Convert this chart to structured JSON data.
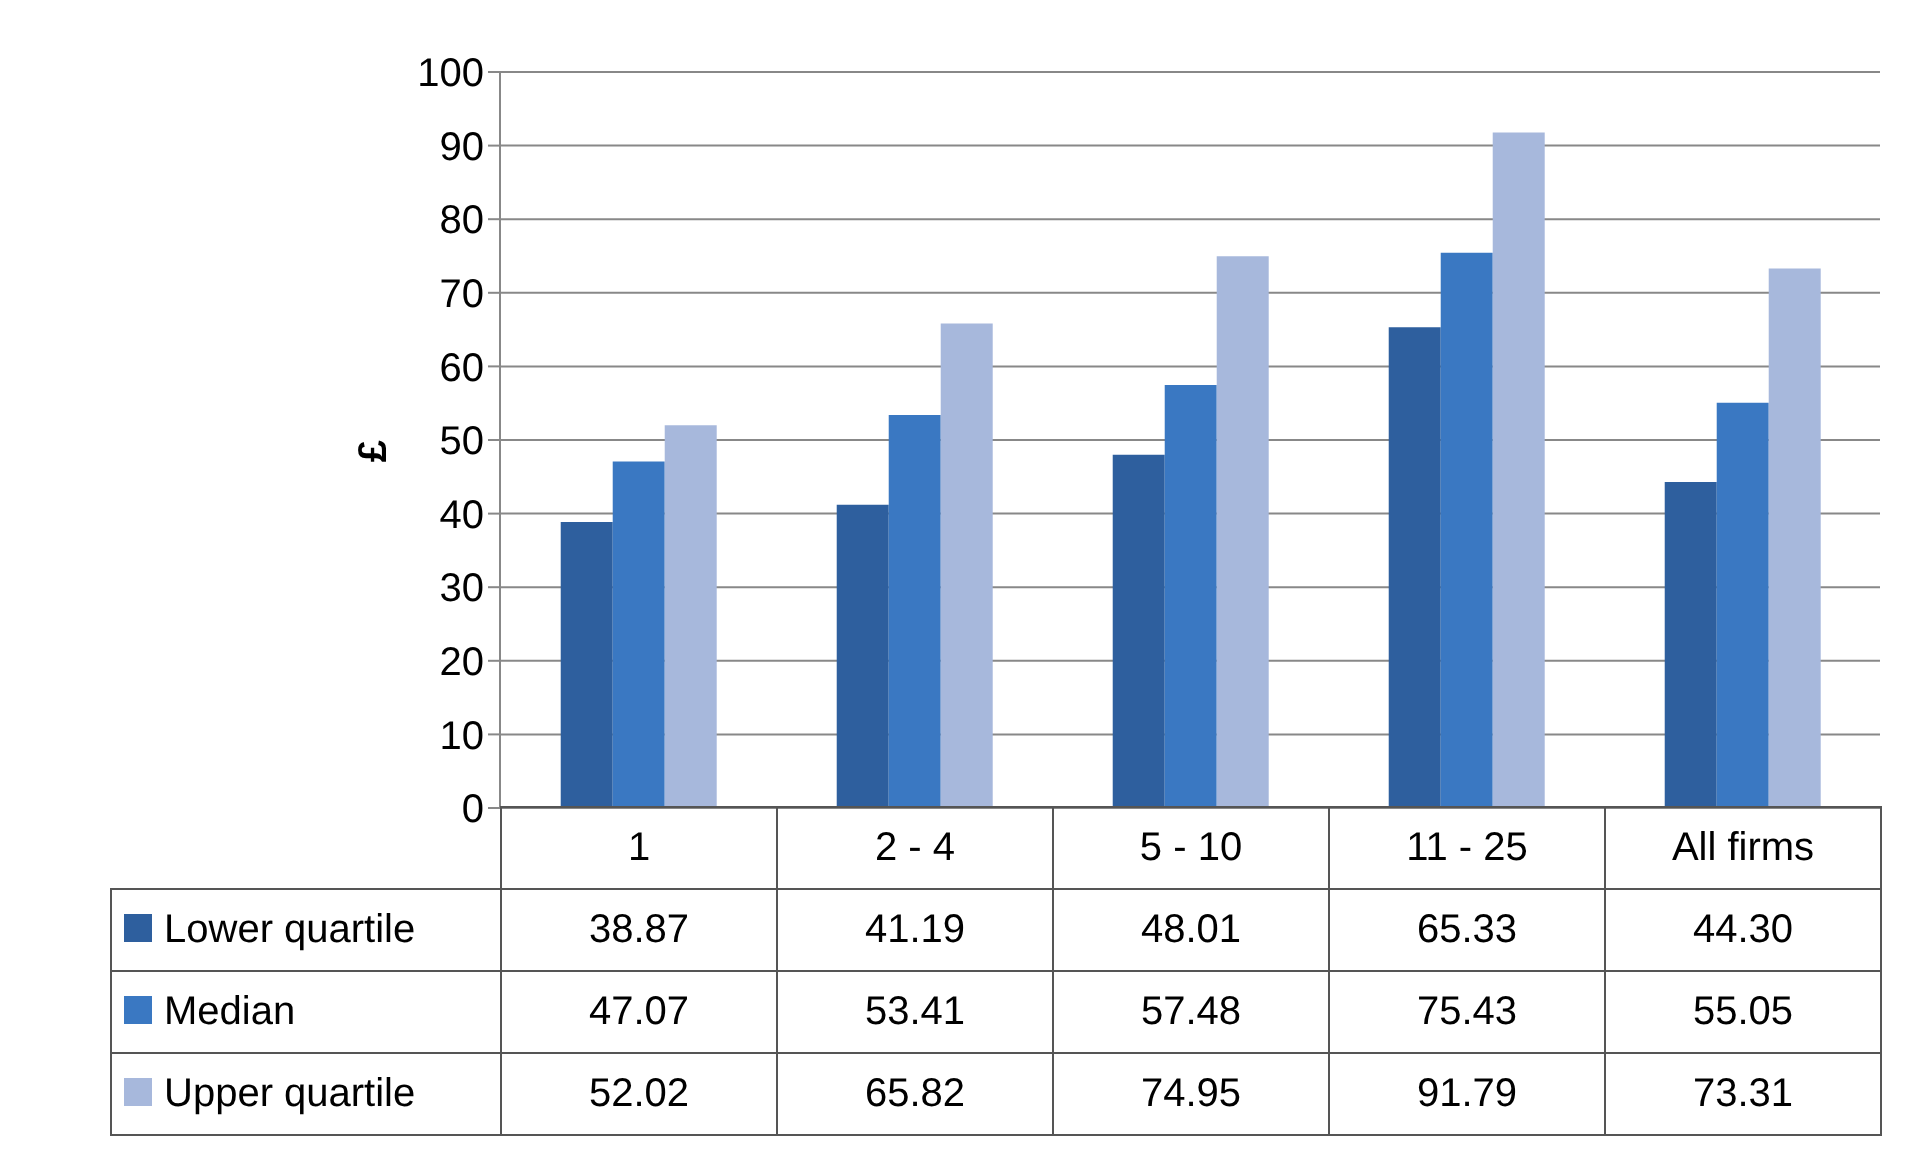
{
  "chart_data": {
    "type": "bar",
    "ylabel": "£",
    "categories": [
      "1",
      "2 - 4",
      "5 - 10",
      "11 - 25",
      "All firms"
    ],
    "series": [
      {
        "name": "Lower quartile",
        "color": "#2e5f9e",
        "values": [
          38.87,
          41.19,
          48.01,
          65.33,
          44.3
        ],
        "value_labels": [
          "38.87",
          "41.19",
          "48.01",
          "65.33",
          "44.30"
        ]
      },
      {
        "name": "Median",
        "color": "#3a78c2",
        "values": [
          47.07,
          53.41,
          57.48,
          75.43,
          55.05
        ],
        "value_labels": [
          "47.07",
          "53.41",
          "57.48",
          "75.43",
          "55.05"
        ]
      },
      {
        "name": "Upper quartile",
        "color": "#a7b8dc",
        "values": [
          52.02,
          65.82,
          74.95,
          91.79,
          73.31
        ],
        "value_labels": [
          "52.02",
          "65.82",
          "74.95",
          "91.79",
          "73.31"
        ]
      }
    ],
    "ylim": [
      0,
      100
    ],
    "yticks": [
      0,
      10,
      20,
      30,
      40,
      50,
      60,
      70,
      80,
      90,
      100
    ],
    "grid": "y",
    "legend": "bottom"
  }
}
